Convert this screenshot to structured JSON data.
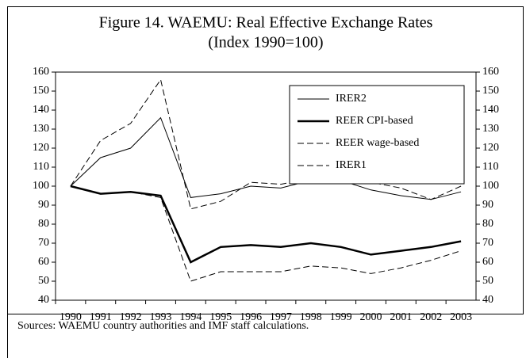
{
  "chart_data": {
    "type": "line",
    "title": "Figure 14. WAEMU: Real Effective Exchange Rates",
    "subtitle": "(Index 1990=100)",
    "categories": [
      "1990",
      "1991",
      "1992",
      "1993",
      "1994",
      "1995",
      "1996",
      "1997",
      "1998",
      "1999",
      "2000",
      "2001",
      "2002",
      "2003"
    ],
    "series": [
      {
        "name": "IRER2",
        "color": "#000000",
        "style": "solid",
        "width": 1,
        "values": [
          100,
          115,
          120,
          136,
          94,
          96,
          100,
          99,
          103,
          103,
          98,
          95,
          93,
          97
        ]
      },
      {
        "name": "REER CPI-based",
        "color": "#000000",
        "style": "solid",
        "width": 2.5,
        "values": [
          100,
          96,
          97,
          95,
          60,
          68,
          69,
          68,
          70,
          68,
          64,
          66,
          68,
          71
        ]
      },
      {
        "name": "REER wage-based",
        "color": "#000000",
        "style": "dashed",
        "width": 1,
        "values": [
          100,
          96,
          97,
          94,
          50,
          55,
          55,
          55,
          58,
          57,
          54,
          57,
          61,
          66
        ]
      },
      {
        "name": "IRER1",
        "color": "#000000",
        "style": "dashed",
        "width": 1,
        "values": [
          100,
          124,
          133,
          156,
          88,
          92,
          102,
          101,
          104,
          104,
          102,
          99,
          93,
          100
        ]
      }
    ],
    "ylim": [
      40,
      160
    ],
    "yticks": [
      40,
      50,
      60,
      70,
      80,
      90,
      100,
      110,
      120,
      130,
      140,
      150,
      160
    ],
    "y2lim": [
      40,
      160
    ],
    "y2ticks": [
      40,
      50,
      60,
      70,
      80,
      90,
      100,
      110,
      120,
      130,
      140,
      150,
      160
    ],
    "legend": "upper right",
    "source": "Sources: WAEMU country authorities and IMF staff calculations."
  }
}
